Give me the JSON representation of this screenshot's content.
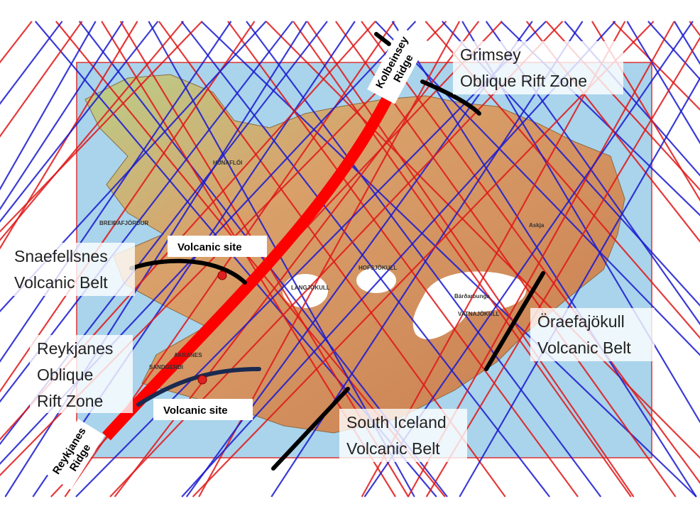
{
  "annotations": [
    {
      "id": "kolbeinsey",
      "lines": [
        "Kolbeinsey",
        "Ridge"
      ]
    },
    {
      "id": "grimsey",
      "lines": [
        "Grimsey",
        "Oblique Rift Zone"
      ]
    },
    {
      "id": "snaefellsnes",
      "lines": [
        "Snaefellsnes",
        "Volcanic Belt"
      ]
    },
    {
      "id": "volcanic-site-1",
      "lines": [
        "Volcanic site"
      ]
    },
    {
      "id": "reykjanes-orz",
      "lines": [
        "Reykjanes",
        "Oblique",
        "Rift Zone"
      ]
    },
    {
      "id": "volcanic-site-2",
      "lines": [
        "Volcanic site"
      ]
    },
    {
      "id": "oraefajokull",
      "lines": [
        "Öraefajökull",
        "Volcanic Belt"
      ]
    },
    {
      "id": "south-iceland",
      "lines": [
        "South Iceland",
        "Volcanic Belt"
      ]
    },
    {
      "id": "reykjanes-ridge",
      "lines": [
        "Reykjanes",
        "Ridge"
      ]
    }
  ],
  "map_labels": [
    "HÚNAFLÓI",
    "BREIÐAFJÖRÐUR",
    "LANGJÖKULL",
    "HOFSJÖKULL",
    "VATNAJÖKULL",
    "Bárðarbunga",
    "Askja",
    "AKRANES",
    "SANDGERÐI"
  ]
}
